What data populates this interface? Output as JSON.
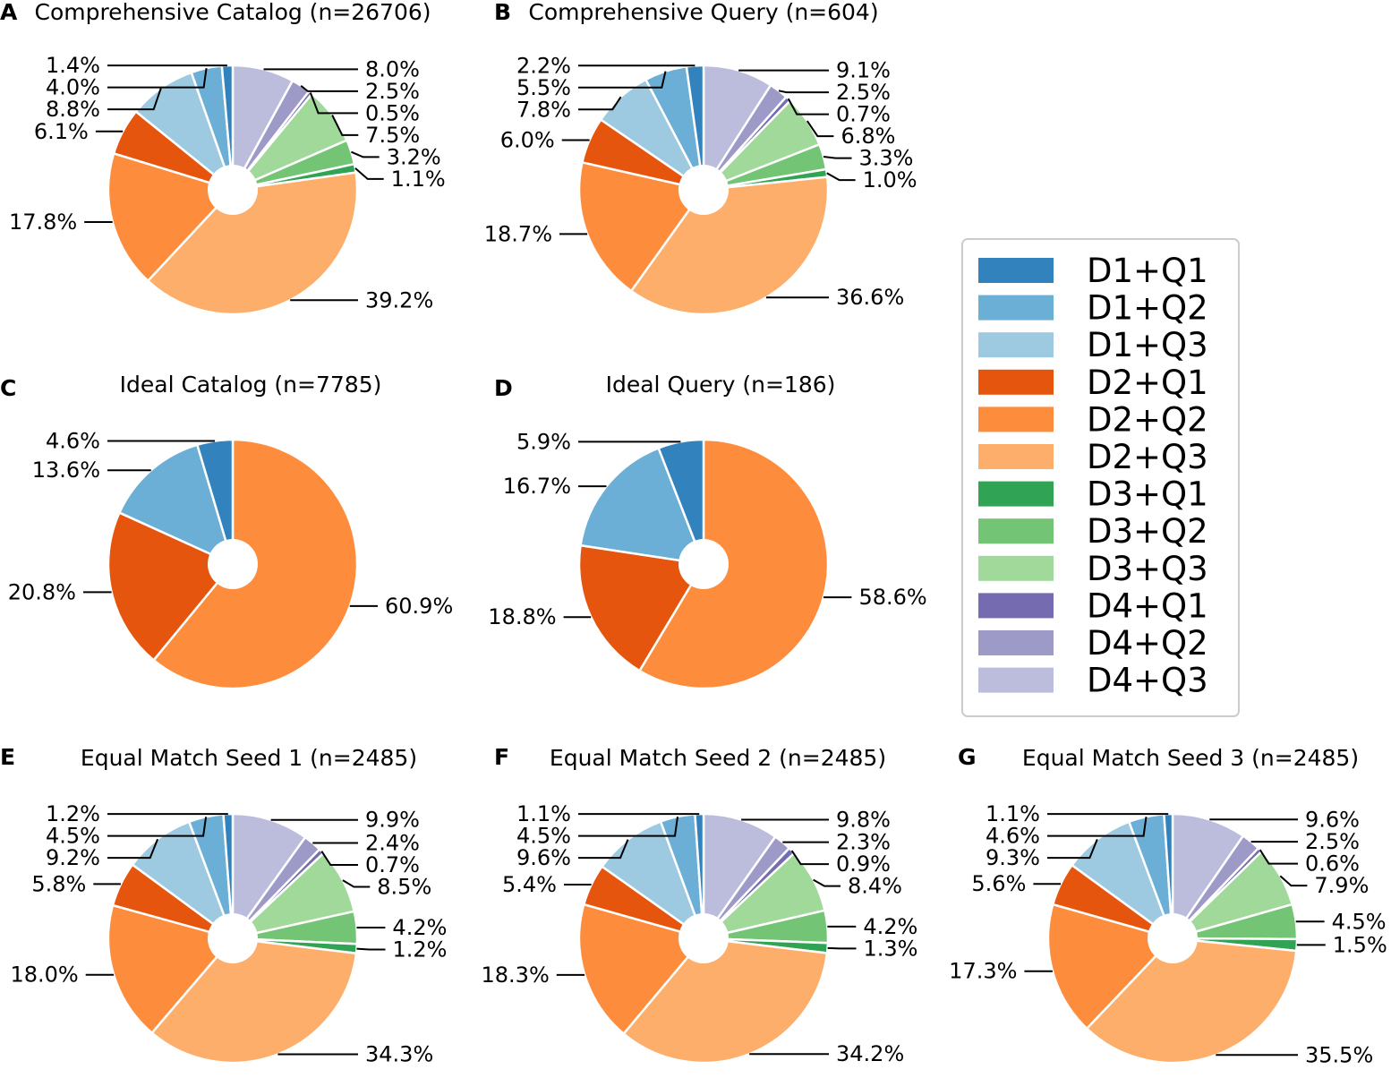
{
  "legend": {
    "categories": [
      "D1+Q1",
      "D1+Q2",
      "D1+Q3",
      "D2+Q1",
      "D2+Q2",
      "D2+Q3",
      "D3+Q1",
      "D3+Q2",
      "D3+Q3",
      "D4+Q1",
      "D4+Q2",
      "D4+Q3"
    ],
    "colors": [
      "#3182bd",
      "#6baed6",
      "#9ecae1",
      "#e6550d",
      "#fd8d3c",
      "#fdae6b",
      "#31a354",
      "#74c476",
      "#a1d99b",
      "#756bb1",
      "#9e9ac8",
      "#bcbddc"
    ]
  },
  "chart_data": [
    {
      "type": "pie",
      "panel": "A",
      "title": "Comprehensive Catalog (n=26706)",
      "values": [
        1.4,
        4.0,
        8.8,
        6.1,
        17.8,
        39.2,
        1.1,
        3.2,
        7.5,
        0.5,
        2.5,
        8.0
      ],
      "labels": [
        "1.4%",
        "4.0%",
        "8.8%",
        "6.1%",
        "17.8%",
        "39.2%",
        "1.1%",
        "3.2%",
        "7.5%",
        "0.5%",
        "2.5%",
        "8.0%"
      ]
    },
    {
      "type": "pie",
      "panel": "B",
      "title": "Comprehensive Query (n=604)",
      "values": [
        2.2,
        5.5,
        7.8,
        6.0,
        18.7,
        36.6,
        1.0,
        3.3,
        6.8,
        0.7,
        2.5,
        9.1
      ],
      "labels": [
        "2.2%",
        "5.5%",
        "7.8%",
        "6.0%",
        "18.7%",
        "36.6%",
        "1.0%",
        "3.3%",
        "6.8%",
        "0.7%",
        "2.5%",
        "9.1%"
      ]
    },
    {
      "type": "pie",
      "panel": "C",
      "title": "Ideal Catalog (n=7785)",
      "values": [
        4.6,
        13.6,
        0,
        20.8,
        60.9,
        0,
        0,
        0,
        0,
        0,
        0,
        0
      ],
      "labels": [
        "4.6%",
        "13.6%",
        "",
        "20.8%",
        "60.9%",
        "",
        "",
        "",
        "",
        "",
        "",
        ""
      ]
    },
    {
      "type": "pie",
      "panel": "D",
      "title": "Ideal Query (n=186)",
      "values": [
        5.9,
        16.7,
        0,
        18.8,
        58.6,
        0,
        0,
        0,
        0,
        0,
        0,
        0
      ],
      "labels": [
        "5.9%",
        "16.7%",
        "",
        "18.8%",
        "58.6%",
        "",
        "",
        "",
        "",
        "",
        "",
        ""
      ]
    },
    {
      "type": "pie",
      "panel": "E",
      "title": "Equal Match Seed 1 (n=2485)",
      "values": [
        1.2,
        4.5,
        9.2,
        5.8,
        18.0,
        34.3,
        1.2,
        4.2,
        8.5,
        0.7,
        2.4,
        9.9
      ],
      "labels": [
        "1.2%",
        "4.5%",
        "9.2%",
        "5.8%",
        "18.0%",
        "34.3%",
        "1.2%",
        "4.2%",
        "8.5%",
        "0.7%",
        "2.4%",
        "9.9%"
      ]
    },
    {
      "type": "pie",
      "panel": "F",
      "title": "Equal Match Seed 2 (n=2485)",
      "values": [
        1.1,
        4.5,
        9.6,
        5.4,
        18.3,
        34.2,
        1.3,
        4.2,
        8.4,
        0.9,
        2.3,
        9.8
      ],
      "labels": [
        "1.1%",
        "4.5%",
        "9.6%",
        "5.4%",
        "18.3%",
        "34.2%",
        "1.3%",
        "4.2%",
        "8.4%",
        "0.9%",
        "2.3%",
        "9.8%"
      ]
    },
    {
      "type": "pie",
      "panel": "G",
      "title": "Equal Match Seed 3 (n=2485)",
      "values": [
        1.1,
        4.6,
        9.3,
        5.6,
        17.3,
        35.5,
        1.5,
        4.5,
        7.9,
        0.6,
        2.5,
        9.6
      ],
      "labels": [
        "1.1%",
        "4.6%",
        "9.3%",
        "5.6%",
        "17.3%",
        "35.5%",
        "1.5%",
        "4.5%",
        "7.9%",
        "0.6%",
        "2.5%",
        "9.6%"
      ]
    }
  ]
}
